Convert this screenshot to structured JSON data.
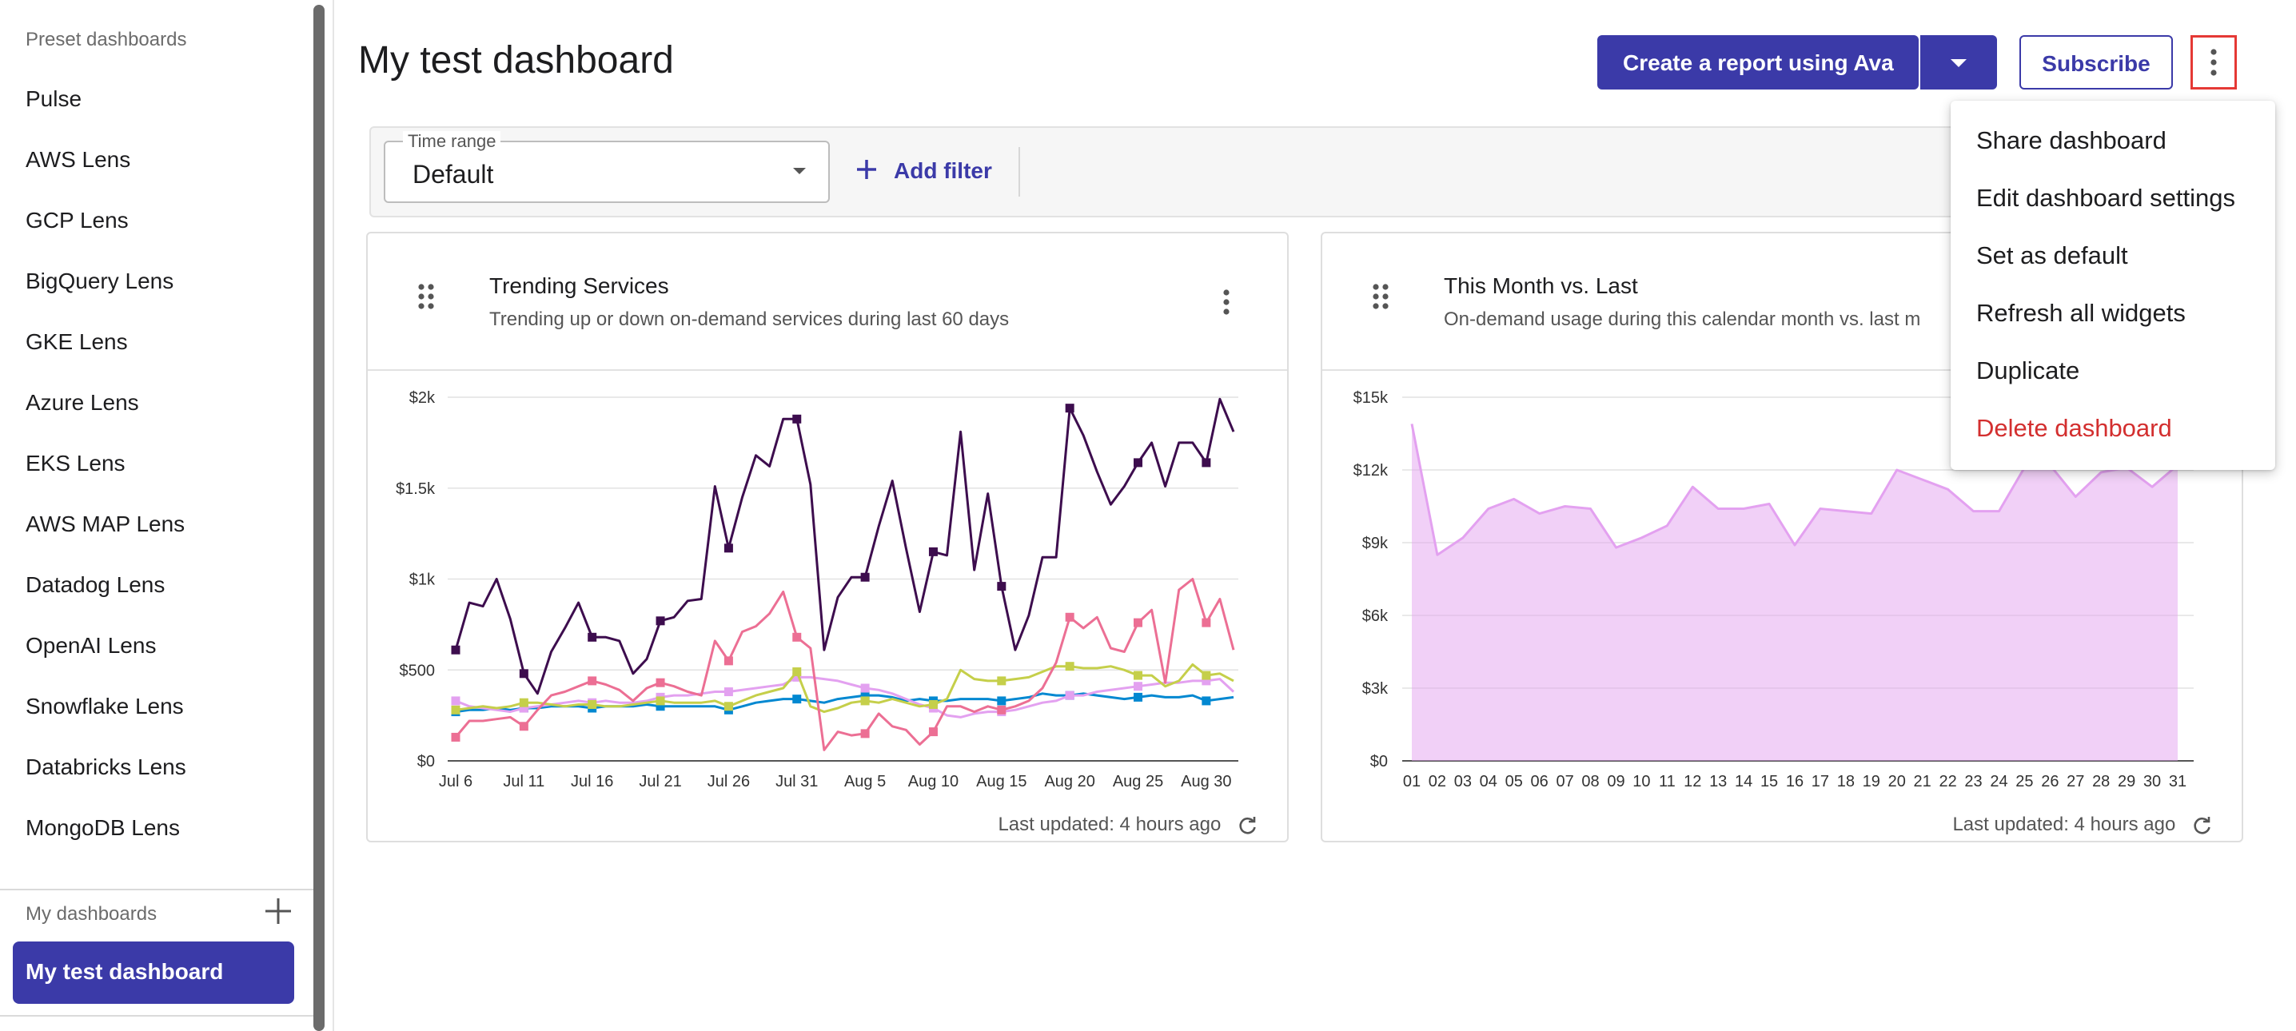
{
  "sidebar": {
    "preset_heading": "Preset dashboards",
    "presets": [
      "Pulse",
      "AWS Lens",
      "GCP Lens",
      "BigQuery Lens",
      "GKE Lens",
      "Azure Lens",
      "EKS Lens",
      "AWS MAP Lens",
      "Datadog Lens",
      "OpenAI Lens",
      "Snowflake Lens",
      "Databricks Lens",
      "MongoDB Lens"
    ],
    "my_heading": "My dashboards",
    "active_item": "My test dashboard"
  },
  "header": {
    "title": "My test dashboard",
    "ava_button": "Create a report using Ava",
    "subscribe_button": "Subscribe"
  },
  "filters": {
    "time_range_label": "Time range",
    "time_range_value": "Default",
    "add_filter": "Add filter"
  },
  "menu": {
    "items": [
      "Share dashboard",
      "Edit dashboard settings",
      "Set as default",
      "Refresh all widgets",
      "Duplicate",
      "Delete dashboard"
    ]
  },
  "widgets": [
    {
      "title": "Trending Services",
      "subtitle": "Trending up or down on-demand services during last 60 days",
      "footer": "Last updated: 4 hours ago"
    },
    {
      "title": "This Month vs. Last",
      "subtitle": "On-demand usage during this calendar month vs. last m",
      "footer": "Last updated: 4 hours ago"
    }
  ],
  "colors": {
    "accent": "#3b3aa8",
    "danger": "#d32f2f",
    "dark_series": "#3d0d4e",
    "pink_series": "#ec6f94",
    "green_series": "#c5cf4a",
    "violet_series": "#e3a1f0",
    "blue_series": "#0288d1"
  },
  "chart_data": [
    {
      "type": "line",
      "title": "Trending Services",
      "x_ticks": [
        "Jul 6",
        "Jul 11",
        "Jul 16",
        "Jul 21",
        "Jul 26",
        "Jul 31",
        "Aug 5",
        "Aug 10",
        "Aug 15",
        "Aug 20",
        "Aug 25",
        "Aug 30"
      ],
      "y_ticks": [
        "$0",
        "$500",
        "$1k",
        "$1.5k",
        "$2k"
      ],
      "ylim": [
        0,
        2000
      ],
      "x_count": 58,
      "series": [
        {
          "name": "series-1",
          "color": "#3d0d4e",
          "values": [
            610,
            870,
            850,
            1000,
            780,
            480,
            370,
            600,
            730,
            870,
            680,
            680,
            660,
            480,
            560,
            770,
            790,
            880,
            890,
            1510,
            1170,
            1450,
            1680,
            1620,
            1880,
            1880,
            1520,
            610,
            900,
            1010,
            1010,
            1290,
            1540,
            1170,
            820,
            1150,
            1130,
            1810,
            1050,
            1470,
            960,
            610,
            800,
            1120,
            1120,
            1940,
            1790,
            1590,
            1410,
            1510,
            1640,
            1750,
            1510,
            1750,
            1750,
            1640,
            1990,
            1810
          ]
        },
        {
          "name": "series-2",
          "color": "#ec6f94",
          "values": [
            130,
            220,
            220,
            230,
            240,
            190,
            280,
            360,
            380,
            410,
            440,
            420,
            390,
            330,
            400,
            430,
            410,
            380,
            360,
            660,
            550,
            710,
            740,
            810,
            930,
            680,
            620,
            60,
            160,
            140,
            150,
            260,
            190,
            170,
            90,
            160,
            300,
            300,
            270,
            300,
            280,
            300,
            330,
            400,
            540,
            790,
            730,
            790,
            620,
            600,
            760,
            830,
            430,
            940,
            1000,
            760,
            890,
            610
          ]
        },
        {
          "name": "series-3",
          "color": "#c5cf4a",
          "values": [
            280,
            290,
            300,
            290,
            300,
            320,
            320,
            310,
            300,
            310,
            310,
            300,
            300,
            310,
            320,
            330,
            320,
            320,
            320,
            330,
            300,
            330,
            360,
            380,
            400,
            490,
            300,
            270,
            290,
            320,
            330,
            320,
            340,
            320,
            300,
            310,
            340,
            500,
            450,
            440,
            440,
            450,
            460,
            490,
            520,
            520,
            510,
            510,
            520,
            500,
            470,
            470,
            410,
            440,
            530,
            470,
            480,
            440
          ]
        },
        {
          "name": "series-4",
          "color": "#e3a1f0",
          "values": [
            330,
            300,
            290,
            280,
            270,
            290,
            300,
            310,
            320,
            330,
            320,
            330,
            320,
            320,
            330,
            350,
            360,
            360,
            370,
            380,
            380,
            390,
            400,
            410,
            420,
            460,
            460,
            450,
            440,
            420,
            400,
            390,
            370,
            340,
            310,
            290,
            250,
            240,
            260,
            270,
            270,
            280,
            300,
            320,
            330,
            360,
            360,
            380,
            390,
            400,
            410,
            420,
            430,
            430,
            440,
            440,
            450,
            380
          ]
        },
        {
          "name": "series-5",
          "color": "#0288d1",
          "values": [
            270,
            280,
            280,
            290,
            280,
            290,
            290,
            300,
            300,
            300,
            290,
            300,
            300,
            300,
            310,
            300,
            300,
            300,
            300,
            300,
            280,
            300,
            320,
            330,
            340,
            340,
            330,
            320,
            340,
            350,
            360,
            360,
            350,
            330,
            340,
            330,
            330,
            340,
            340,
            340,
            330,
            340,
            350,
            370,
            360,
            360,
            370,
            360,
            350,
            340,
            350,
            360,
            350,
            350,
            360,
            330,
            340,
            350
          ]
        }
      ]
    },
    {
      "type": "area",
      "title": "This Month vs. Last",
      "x_ticks": [
        "01",
        "02",
        "03",
        "04",
        "05",
        "06",
        "07",
        "08",
        "09",
        "10",
        "11",
        "12",
        "13",
        "14",
        "15",
        "16",
        "17",
        "18",
        "19",
        "20",
        "21",
        "22",
        "23",
        "24",
        "25",
        "26",
        "27",
        "28",
        "29",
        "30",
        "31"
      ],
      "y_ticks": [
        "$0",
        "$3k",
        "$6k",
        "$9k",
        "$12k",
        "$15k"
      ],
      "ylim": [
        0,
        15000
      ],
      "series": [
        {
          "name": "this-month",
          "color": "#e3a1f0",
          "values": [
            13900,
            8500,
            9200,
            10400,
            10800,
            10200,
            10500,
            10400,
            8800,
            9200,
            9700,
            11300,
            10400,
            10400,
            10600,
            8900,
            10400,
            10300,
            10200,
            12000,
            11600,
            11200,
            10300,
            10300,
            12100,
            12200,
            10900,
            11900,
            12100,
            11300,
            12200
          ]
        }
      ]
    }
  ]
}
